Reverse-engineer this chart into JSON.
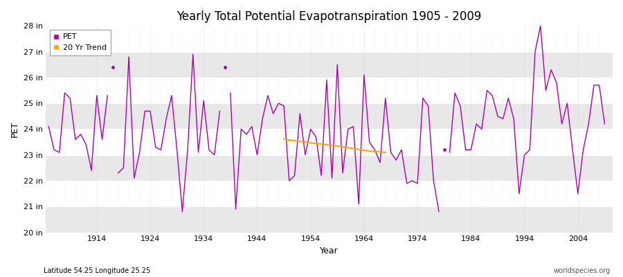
{
  "title": "Yearly Total Potential Evapotranspiration 1905 - 2009",
  "xlabel": "Year",
  "ylabel": "PET",
  "subtitle_left": "Latitude 54.25 Longitude 25.25",
  "subtitle_right": "worldspecies.org",
  "pet_color": "#AA00AA",
  "trend_color": "#FFA500",
  "bg_color": "#ffffff",
  "plot_bg_color": "#ffffff",
  "band_color": "#e8e8e8",
  "ylim_low": 20,
  "ylim_high": 28,
  "yticks": [
    20,
    21,
    22,
    23,
    24,
    25,
    26,
    27,
    28
  ],
  "ytick_labels": [
    "20 in",
    "21 in",
    "22 in",
    "23 in",
    "24 in",
    "25 in",
    "26 in",
    "27 in",
    "28 in"
  ],
  "xlim_low": 1904.5,
  "xlim_high": 2010.5,
  "xtick_positions": [
    1914,
    1924,
    1934,
    1944,
    1954,
    1964,
    1974,
    1984,
    1994,
    2004
  ],
  "years": [
    1905,
    1906,
    1907,
    1908,
    1909,
    1910,
    1911,
    1912,
    1913,
    1914,
    1915,
    1916,
    1917,
    1918,
    1919,
    1920,
    1921,
    1922,
    1923,
    1924,
    1925,
    1926,
    1927,
    1928,
    1929,
    1930,
    1931,
    1932,
    1933,
    1934,
    1935,
    1936,
    1937,
    1938,
    1939,
    1940,
    1941,
    1942,
    1943,
    1944,
    1945,
    1946,
    1947,
    1948,
    1949,
    1950,
    1951,
    1952,
    1953,
    1954,
    1955,
    1956,
    1957,
    1958,
    1959,
    1960,
    1961,
    1962,
    1963,
    1964,
    1965,
    1966,
    1967,
    1968,
    1969,
    1970,
    1971,
    1972,
    1973,
    1974,
    1975,
    1976,
    1977,
    1978,
    1979,
    1980,
    1981,
    1982,
    1983,
    1984,
    1985,
    1986,
    1987,
    1988,
    1989,
    1990,
    1991,
    1992,
    1993,
    1994,
    1995,
    1996,
    1997,
    1998,
    1999,
    2000,
    2001,
    2002,
    2003,
    2004,
    2005,
    2006,
    2007,
    2008,
    2009
  ],
  "pet_values": [
    24.1,
    23.2,
    23.1,
    25.4,
    25.2,
    23.6,
    23.8,
    23.4,
    22.4,
    25.3,
    23.6,
    25.3,
    null,
    22.3,
    22.5,
    26.8,
    22.1,
    23.1,
    24.7,
    24.7,
    23.3,
    23.2,
    24.4,
    25.3,
    23.2,
    20.8,
    23.2,
    26.9,
    23.1,
    25.1,
    23.2,
    23.0,
    24.7,
    null,
    25.4,
    20.9,
    24.0,
    23.8,
    24.1,
    23.0,
    24.4,
    25.3,
    24.6,
    25.0,
    24.9,
    22.0,
    22.2,
    24.6,
    23.0,
    24.0,
    23.7,
    22.2,
    25.9,
    22.1,
    26.5,
    22.3,
    24.0,
    24.1,
    21.1,
    26.1,
    23.5,
    23.2,
    22.7,
    25.2,
    23.1,
    22.8,
    23.2,
    21.9,
    22.0,
    21.9,
    25.2,
    24.9,
    22.0,
    20.8,
    null,
    23.1,
    25.4,
    24.9,
    23.2,
    23.2,
    24.2,
    24.0,
    25.5,
    25.3,
    24.5,
    24.4,
    25.2,
    24.4,
    21.5,
    23.0,
    23.2,
    27.0,
    28.0,
    25.5,
    26.3,
    25.8,
    24.2,
    25.0,
    23.2,
    21.5,
    23.2,
    24.2,
    25.7,
    25.7,
    24.2
  ],
  "isolated_points": [
    {
      "year": 1917,
      "value": 26.4
    },
    {
      "year": 1938,
      "value": 26.4
    },
    {
      "year": 1979,
      "value": 23.2
    }
  ],
  "trend_years": [
    1949,
    1950,
    1951,
    1952,
    1953,
    1954,
    1955,
    1956,
    1957,
    1958,
    1959,
    1960,
    1961,
    1962,
    1963,
    1964,
    1965,
    1966,
    1967,
    1968
  ],
  "trend_values": [
    23.62,
    23.58,
    23.55,
    23.53,
    23.5,
    23.47,
    23.44,
    23.42,
    23.4,
    23.37,
    23.35,
    23.32,
    23.28,
    23.25,
    23.22,
    23.18,
    23.15,
    23.13,
    23.12,
    23.1
  ],
  "legend_labels": [
    "PET",
    "20 Yr Trend"
  ]
}
